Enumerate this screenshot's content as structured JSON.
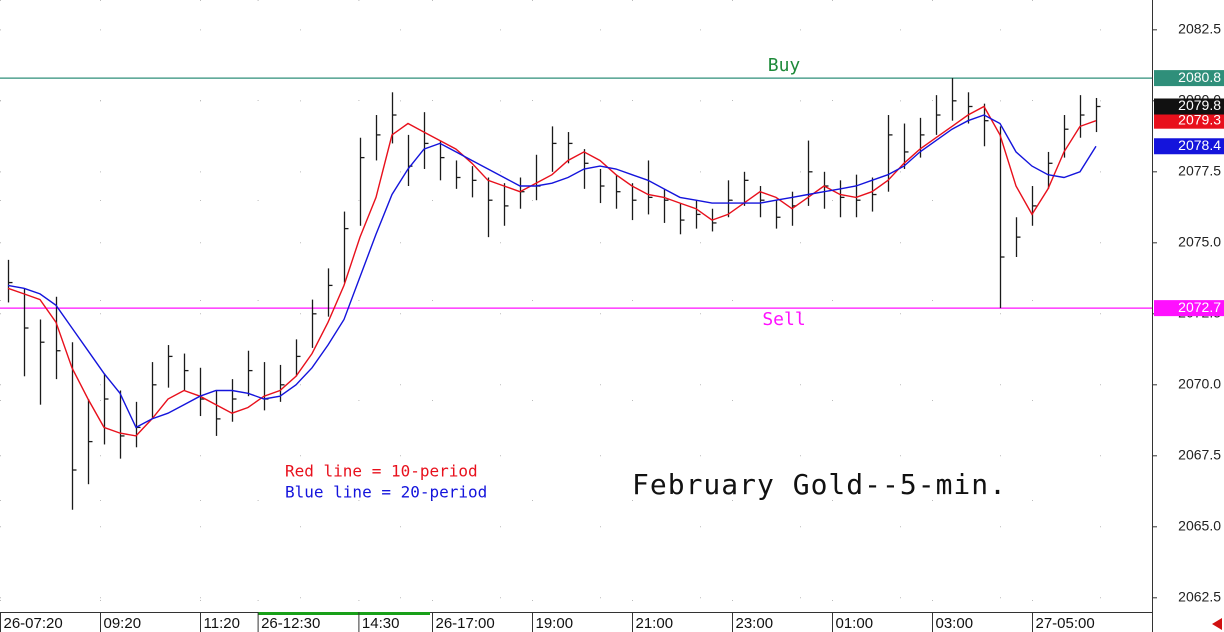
{
  "chart_data": {
    "type": "ohlc",
    "title": "February Gold--5-min.",
    "bar_color": "#1a1a1a",
    "last_color": "#111111",
    "ylim": [
      2062.0,
      2083.55
    ],
    "yticks": [
      2062.5,
      {
        "value": 2065.0,
        "label": "2065.0"
      },
      2067.5,
      {
        "value": 2070.0,
        "label": "2070.0"
      },
      2072.5,
      {
        "value": 2075.0,
        "label": "2075.0"
      },
      2077.5,
      {
        "value": 2080.0,
        "label": "2080.0"
      },
      2082.5
    ],
    "xlim": [
      0,
      72
    ],
    "xticks": [
      {
        "value": 0,
        "label": "26-07:20"
      },
      {
        "value": 6.25,
        "label": "09:20"
      },
      {
        "value": 12.5,
        "label": "11:20"
      },
      {
        "value": 16.1,
        "label": "26-12:30"
      },
      {
        "value": 22.4,
        "label": "14:30"
      },
      {
        "value": 27,
        "label": "26-17:00"
      },
      {
        "value": 33.25,
        "label": "19:00"
      },
      {
        "value": 39.5,
        "label": "21:00"
      },
      {
        "value": 45.75,
        "label": "23:00"
      },
      {
        "value": 52,
        "label": "01:00"
      },
      {
        "value": 58.25,
        "label": "03:00"
      },
      {
        "value": 64.5,
        "label": "27-05:00"
      }
    ],
    "highs": [
      2074.4,
      2073.4,
      2072.3,
      2073.1,
      2071.5,
      2069.5,
      2070.4,
      2069.8,
      2069.4,
      2070.8,
      2071.4,
      2071.1,
      2070.6,
      2069.8,
      2070.2,
      2071.2,
      2070.8,
      2070.7,
      2071.6,
      2073.0,
      2074.1,
      2076.1,
      2078.7,
      2079.5,
      2080.3,
      2078.8,
      2079.6,
      2078.6,
      2077.9,
      2077.7,
      2077.3,
      2077.1,
      2077.3,
      2078.1,
      2079.1,
      2078.9,
      2078.3,
      2077.6,
      2077.4,
      2077.1,
      2077.9,
      2076.9,
      2076.4,
      2076.5,
      2076.2,
      2077.2,
      2077.5,
      2077.0,
      2076.5,
      2076.8,
      2078.6,
      2077.5,
      2077.2,
      2077.4,
      2077.3,
      2079.5,
      2079.2,
      2079.4,
      2080.2,
      2080.8,
      2080.3,
      2079.9,
      2079.1,
      2075.9,
      2077.0,
      2078.2,
      2079.5,
      2080.2,
      2080.1
    ],
    "lows": [
      2072.9,
      2070.3,
      2069.3,
      2070.2,
      2065.6,
      2066.5,
      2067.9,
      2067.4,
      2067.8,
      2068.8,
      2069.9,
      2069.8,
      2068.9,
      2068.2,
      2068.7,
      2069.6,
      2069.1,
      2069.4,
      2070.3,
      2071.3,
      2072.4,
      2073.6,
      2075.6,
      2077.9,
      2078.5,
      2077.0,
      2077.6,
      2077.2,
      2076.9,
      2076.6,
      2075.2,
      2075.6,
      2076.2,
      2076.5,
      2077.5,
      2077.8,
      2076.9,
      2076.4,
      2076.2,
      2075.8,
      2076.0,
      2075.7,
      2075.3,
      2075.5,
      2075.4,
      2075.9,
      2076.3,
      2075.9,
      2075.5,
      2075.6,
      2076.3,
      2076.2,
      2075.9,
      2075.9,
      2076.1,
      2076.8,
      2077.6,
      2078.0,
      2078.8,
      2079.3,
      2079.2,
      2078.4,
      2072.7,
      2074.5,
      2075.6,
      2076.9,
      2078.0,
      2078.7,
      2078.9
    ],
    "closes": [
      2073.6,
      2072.0,
      2071.5,
      2071.2,
      2067.0,
      2068.0,
      2069.5,
      2068.2,
      2068.5,
      2070.0,
      2071.0,
      2070.5,
      2069.5,
      2068.8,
      2069.5,
      2070.5,
      2069.5,
      2070.0,
      2071.0,
      2072.5,
      2073.5,
      2075.5,
      2078.0,
      2078.8,
      2079.5,
      2077.7,
      2078.5,
      2078.0,
      2077.3,
      2077.2,
      2076.5,
      2076.3,
      2076.8,
      2077.0,
      2078.5,
      2078.5,
      2077.8,
      2077.0,
      2076.8,
      2076.5,
      2076.6,
      2076.5,
      2075.8,
      2076.0,
      2075.7,
      2076.5,
      2077.2,
      2076.5,
      2075.9,
      2076.3,
      2077.5,
      2077.0,
      2076.6,
      2076.5,
      2076.7,
      2078.8,
      2078.2,
      2078.8,
      2079.5,
      2080.0,
      2079.8,
      2079.3,
      2074.5,
      2075.2,
      2076.3,
      2077.8,
      2079.0,
      2079.5,
      2079.8
    ],
    "series": [
      {
        "name": "Red line = 10-period",
        "color": "#e8101c",
        "values": [
          2073.4,
          2073.2,
          2073.0,
          2072.2,
          2070.6,
          2069.5,
          2068.5,
          2068.3,
          2068.2,
          2068.8,
          2069.5,
          2069.8,
          2069.6,
          2069.3,
          2069.0,
          2069.2,
          2069.6,
          2069.8,
          2070.3,
          2071.1,
          2072.2,
          2073.5,
          2075.2,
          2076.6,
          2078.8,
          2079.2,
          2078.9,
          2078.6,
          2078.3,
          2077.8,
          2077.2,
          2077.0,
          2076.8,
          2077.1,
          2077.4,
          2077.9,
          2078.2,
          2077.9,
          2077.4,
          2077.0,
          2076.7,
          2076.6,
          2076.4,
          2076.2,
          2075.8,
          2076.0,
          2076.4,
          2076.8,
          2076.6,
          2076.2,
          2076.6,
          2077.0,
          2076.7,
          2076.6,
          2076.8,
          2077.2,
          2077.8,
          2078.3,
          2078.7,
          2079.1,
          2079.5,
          2079.8,
          2078.8,
          2077.0,
          2076.0,
          2076.9,
          2078.2,
          2079.1,
          2079.3
        ]
      },
      {
        "name": "Blue line = 20-period",
        "color": "#1414dc",
        "values": [
          2073.5,
          2073.4,
          2073.2,
          2072.8,
          2072.0,
          2071.2,
          2070.4,
          2069.7,
          2068.5,
          2068.8,
          2069.0,
          2069.3,
          2069.6,
          2069.8,
          2069.8,
          2069.7,
          2069.5,
          2069.6,
          2070.0,
          2070.6,
          2071.4,
          2072.3,
          2073.8,
          2075.3,
          2076.7,
          2077.6,
          2078.3,
          2078.5,
          2078.2,
          2077.9,
          2077.6,
          2077.3,
          2077.0,
          2077.0,
          2077.1,
          2077.3,
          2077.6,
          2077.7,
          2077.6,
          2077.4,
          2077.2,
          2076.9,
          2076.6,
          2076.5,
          2076.4,
          2076.4,
          2076.4,
          2076.4,
          2076.5,
          2076.6,
          2076.7,
          2076.8,
          2076.9,
          2077.0,
          2077.2,
          2077.4,
          2077.7,
          2078.2,
          2078.6,
          2079.0,
          2079.3,
          2079.5,
          2079.2,
          2078.2,
          2077.7,
          2077.4,
          2077.3,
          2077.5,
          2078.4
        ]
      }
    ],
    "hlines": [
      {
        "label": "Buy",
        "value": 2080.8,
        "color": "#2f8f7a",
        "text_color": "#1e8a3a",
        "label_pos": "above"
      },
      {
        "label": "Sell",
        "value": 2072.7,
        "color": "#ff10ff",
        "text_color": "#ff10ff",
        "label_pos": "below"
      }
    ]
  }
}
